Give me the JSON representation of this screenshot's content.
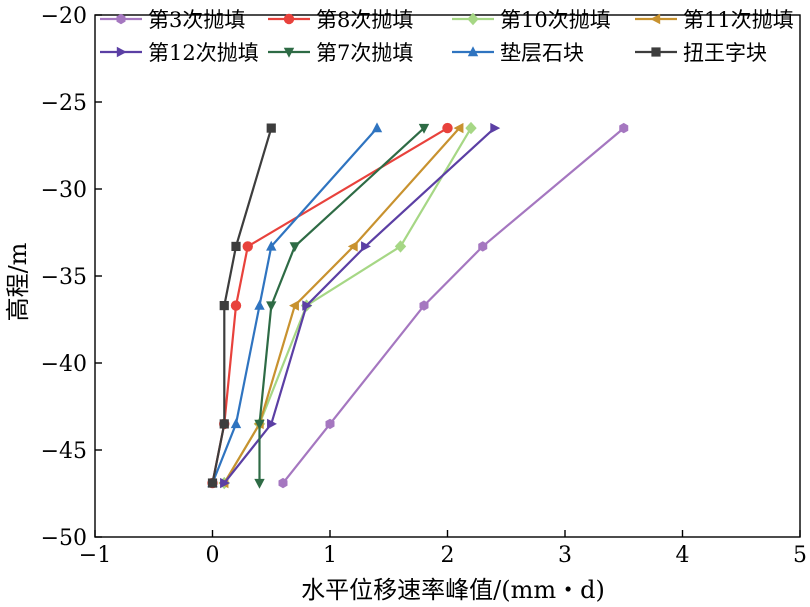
{
  "chart_data": {
    "type": "line",
    "xlabel": "水平位移速率峰值/(mm・d)",
    "ylabel": "高程/m",
    "xlim": [
      -1,
      5
    ],
    "ylim": [
      -50,
      -20
    ],
    "x_ticks": [
      -1,
      0,
      1,
      2,
      3,
      4,
      5
    ],
    "y_ticks": [
      -20,
      -25,
      -30,
      -35,
      -40,
      -45,
      -50
    ],
    "x_tick_labels": [
      "−1",
      "0",
      "1",
      "2",
      "3",
      "4",
      "5"
    ],
    "y_tick_labels": [
      "−20",
      "−25",
      "−30",
      "−35",
      "−40",
      "−45",
      "−50"
    ],
    "grid": false,
    "legend_position": "top",
    "series": [
      {
        "name": "第3次抛填",
        "color": "#a577c0",
        "marker": "hexagon",
        "x": [
          3.5,
          2.3,
          1.8,
          1.0,
          0.6
        ],
        "y": [
          -26.5,
          -33.3,
          -36.7,
          -43.5,
          -46.9
        ]
      },
      {
        "name": "第8次抛填",
        "color": "#e8423c",
        "marker": "circle",
        "x": [
          2.0,
          0.3,
          0.2,
          0.1,
          0.0
        ],
        "y": [
          -26.5,
          -33.3,
          -36.7,
          -43.5,
          -46.9
        ]
      },
      {
        "name": "第10次抛填",
        "color": "#a6d785",
        "marker": "diamond",
        "x": [
          2.2,
          1.6,
          0.8,
          0.4,
          0.1
        ],
        "y": [
          -26.5,
          -33.3,
          -36.7,
          -43.5,
          -46.9
        ]
      },
      {
        "name": "第11次抛填",
        "color": "#c8922f",
        "marker": "triangle-left",
        "x": [
          2.1,
          1.2,
          0.7,
          0.4,
          0.1
        ],
        "y": [
          -26.5,
          -33.3,
          -36.7,
          -43.5,
          -46.9
        ]
      },
      {
        "name": "第12次抛填",
        "color": "#5b3fa4",
        "marker": "triangle-right",
        "x": [
          2.4,
          1.3,
          0.8,
          0.5,
          0.1
        ],
        "y": [
          -26.5,
          -33.3,
          -36.7,
          -43.5,
          -46.9
        ]
      },
      {
        "name": "第7次抛填",
        "color": "#2e6b45",
        "marker": "triangle-down",
        "x": [
          1.8,
          0.7,
          0.5,
          0.4,
          0.4
        ],
        "y": [
          -26.5,
          -33.3,
          -36.7,
          -43.5,
          -46.9
        ]
      },
      {
        "name": "垫层石块",
        "color": "#2f74c0",
        "marker": "triangle-up",
        "x": [
          1.4,
          0.5,
          0.4,
          0.2,
          0.0
        ],
        "y": [
          -26.5,
          -33.3,
          -36.7,
          -43.5,
          -46.9
        ]
      },
      {
        "name": "扭王字块",
        "color": "#3d3d3d",
        "marker": "square",
        "x": [
          0.5,
          0.2,
          0.1,
          0.1,
          0.0
        ],
        "y": [
          -26.5,
          -33.3,
          -36.7,
          -43.5,
          -46.9
        ]
      }
    ]
  }
}
